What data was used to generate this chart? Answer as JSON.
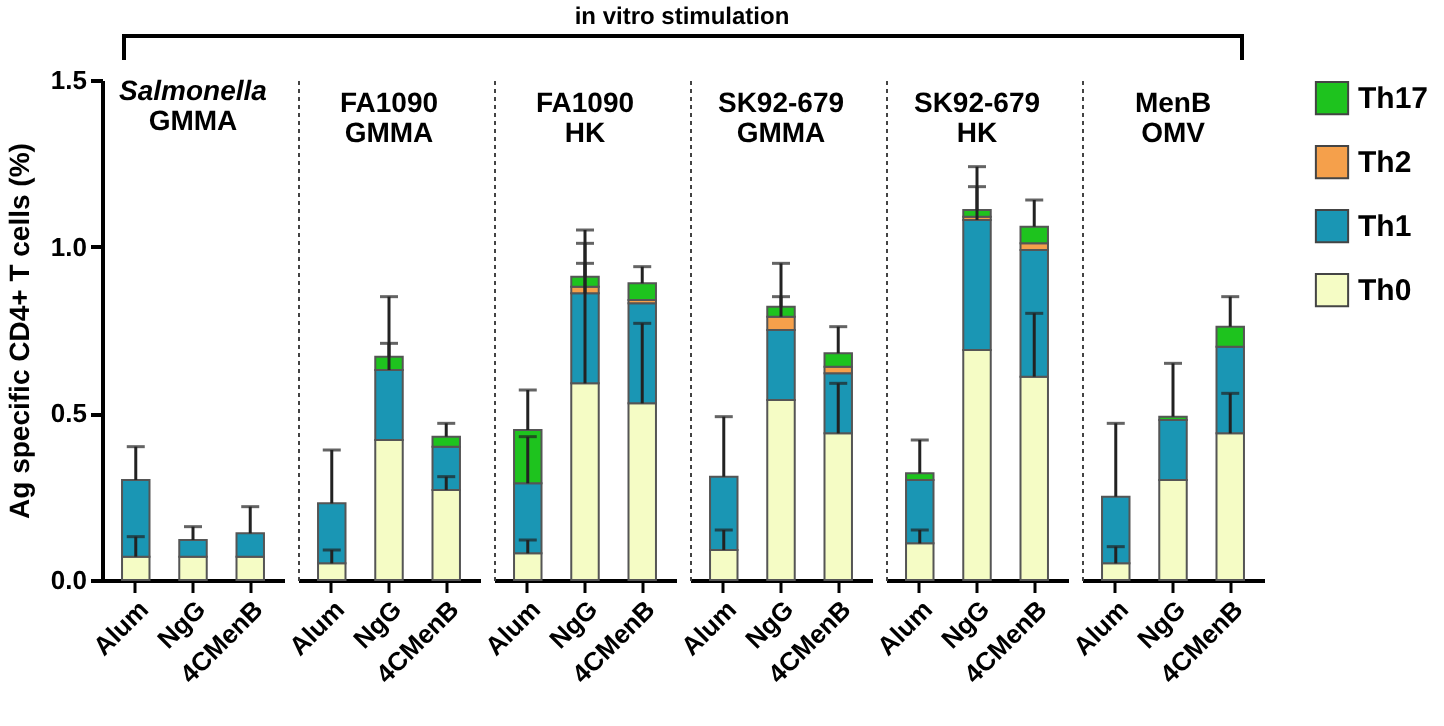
{
  "chart_data": [
    {
      "type": "bar",
      "title": "Salmonella",
      "subtitle": "GMMA",
      "ylabel": "Ag specific CD4+ T cells (%)",
      "annotations": [
        "in vitro stimulation"
      ],
      "categories": [
        "Alum",
        "NgG",
        "4CMenB"
      ],
      "stacked": true,
      "ylim": [
        0,
        1.5
      ],
      "yticks": [
        {
          "value": 0,
          "label": "0.0"
        },
        {
          "value": 0.5,
          "label": "0.5"
        },
        {
          "value": 1,
          "label": "1.0"
        },
        {
          "value": 1.5,
          "label": "1.5"
        }
      ],
      "grid": false,
      "series": [
        {
          "color": "#f5fcc5",
          "values": [
            0.07,
            0.07,
            0.07
          ],
          "errors": [
            [
              0.07,
              0.13
            ],
            null,
            null
          ]
        },
        {
          "color": "#1a96b4",
          "values": [
            0.23,
            0.05,
            0.07
          ],
          "errors": [
            [
              0.3,
              0.4
            ],
            [
              0.12,
              0.16
            ],
            [
              0.14,
              0.22
            ]
          ]
        },
        {
          "color": "#f5a04b",
          "values": [
            0,
            0,
            0
          ]
        },
        {
          "color": "#1ec31e",
          "values": [
            0,
            0,
            0
          ]
        }
      ]
    },
    {
      "type": "bar",
      "title": "FA1090",
      "subtitle": "GMMA",
      "categories": [
        "Alum",
        "NgG",
        "4CMenB"
      ],
      "stacked": true,
      "ylim": [
        0,
        1.5
      ],
      "tick_labels": "x",
      "grid": false,
      "series": [
        {
          "color": "#f5fcc5",
          "values": [
            0.05,
            0.42,
            0.27
          ],
          "errors": [
            [
              0.05,
              0.09
            ],
            null,
            [
              0.27,
              0.31
            ]
          ]
        },
        {
          "color": "#1a96b4",
          "values": [
            0.18,
            0.21,
            0.13
          ],
          "errors": [
            [
              0.23,
              0.39
            ],
            [
              0.63,
              0.71
            ],
            null
          ]
        },
        {
          "color": "#f5a04b",
          "values": [
            0,
            0,
            0
          ]
        },
        {
          "color": "#1ec31e",
          "values": [
            0,
            0.04,
            0.03
          ],
          "errors": [
            null,
            [
              0.67,
              0.85
            ],
            [
              0.43,
              0.47
            ]
          ]
        }
      ]
    },
    {
      "type": "bar",
      "title": "FA1090",
      "subtitle": "HK",
      "categories": [
        "Alum",
        "NgG",
        "4CMenB"
      ],
      "stacked": true,
      "ylim": [
        0,
        1.5
      ],
      "tick_labels": "x",
      "grid": false,
      "series": [
        {
          "color": "#f5fcc5",
          "values": [
            0.08,
            0.59,
            0.53
          ],
          "errors": [
            [
              0.08,
              0.12
            ],
            [
              0.59,
              0.95
            ],
            [
              0.53,
              0.77
            ]
          ]
        },
        {
          "color": "#1a96b4",
          "values": [
            0.21,
            0.27,
            0.3
          ],
          "errors": [
            [
              0.29,
              0.43
            ],
            [
              0.86,
              1.01
            ],
            null
          ]
        },
        {
          "color": "#f5a04b",
          "values": [
            0,
            0.02,
            0.01
          ]
        },
        {
          "color": "#1ec31e",
          "values": [
            0.16,
            0.03,
            0.05
          ],
          "errors": [
            [
              0.45,
              0.57
            ],
            [
              0.91,
              1.05
            ],
            [
              0.89,
              0.94
            ]
          ]
        }
      ]
    },
    {
      "type": "bar",
      "title": "SK92-679",
      "subtitle": "GMMA",
      "categories": [
        "Alum",
        "NgG",
        "4CMenB"
      ],
      "stacked": true,
      "ylim": [
        0,
        1.5
      ],
      "tick_labels": "x",
      "grid": false,
      "series": [
        {
          "color": "#f5fcc5",
          "values": [
            0.09,
            0.54,
            0.44
          ],
          "errors": [
            [
              0.09,
              0.15
            ],
            null,
            [
              0.44,
              0.59
            ]
          ]
        },
        {
          "color": "#1a96b4",
          "values": [
            0.22,
            0.21,
            0.18
          ],
          "errors": [
            [
              0.31,
              0.49
            ],
            null,
            null
          ]
        },
        {
          "color": "#f5a04b",
          "values": [
            0,
            0.04,
            0.02
          ],
          "errors": [
            null,
            [
              0.79,
              0.85
            ],
            null
          ]
        },
        {
          "color": "#1ec31e",
          "values": [
            0,
            0.03,
            0.04
          ],
          "errors": [
            null,
            [
              0.82,
              0.95
            ],
            [
              0.68,
              0.76
            ]
          ]
        }
      ]
    },
    {
      "type": "bar",
      "title": "SK92-679",
      "subtitle": "HK",
      "categories": [
        "Alum",
        "NgG",
        "4CMenB"
      ],
      "stacked": true,
      "ylim": [
        0,
        1.5
      ],
      "tick_labels": "x",
      "grid": false,
      "series": [
        {
          "color": "#f5fcc5",
          "values": [
            0.11,
            0.69,
            0.61
          ],
          "errors": [
            [
              0.11,
              0.15
            ],
            null,
            [
              0.61,
              0.8
            ]
          ]
        },
        {
          "color": "#1a96b4",
          "values": [
            0.19,
            0.39,
            0.38
          ],
          "errors": [
            null,
            [
              1.08,
              1.18
            ],
            null
          ]
        },
        {
          "color": "#f5a04b",
          "values": [
            0,
            0.01,
            0.02
          ]
        },
        {
          "color": "#1ec31e",
          "values": [
            0.02,
            0.02,
            0.05
          ],
          "errors": [
            [
              0.32,
              0.42
            ],
            [
              1.11,
              1.24
            ],
            [
              1.06,
              1.14
            ]
          ]
        }
      ]
    },
    {
      "type": "bar",
      "title": "MenB",
      "subtitle": "OMV",
      "categories": [
        "Alum",
        "NgG",
        "4CMenB"
      ],
      "stacked": true,
      "ylim": [
        0,
        1.5
      ],
      "tick_labels": "x",
      "grid": false,
      "legend": "right",
      "series": [
        {
          "name": "Th0",
          "color": "#f5fcc5",
          "values": [
            0.05,
            0.3,
            0.44
          ],
          "errors": [
            [
              0.05,
              0.1
            ],
            null,
            [
              0.44,
              0.56
            ]
          ]
        },
        {
          "name": "Th1",
          "color": "#1a96b4",
          "values": [
            0.2,
            0.18,
            0.26
          ],
          "errors": [
            [
              0.25,
              0.47
            ],
            null,
            null
          ]
        },
        {
          "name": "Th2",
          "color": "#f5a04b",
          "values": [
            0,
            0,
            0
          ]
        },
        {
          "name": "Th17",
          "color": "#1ec31e",
          "values": [
            0,
            0.01,
            0.06
          ],
          "errors": [
            null,
            [
              0.49,
              0.65
            ],
            [
              0.76,
              0.85
            ]
          ]
        }
      ]
    }
  ]
}
